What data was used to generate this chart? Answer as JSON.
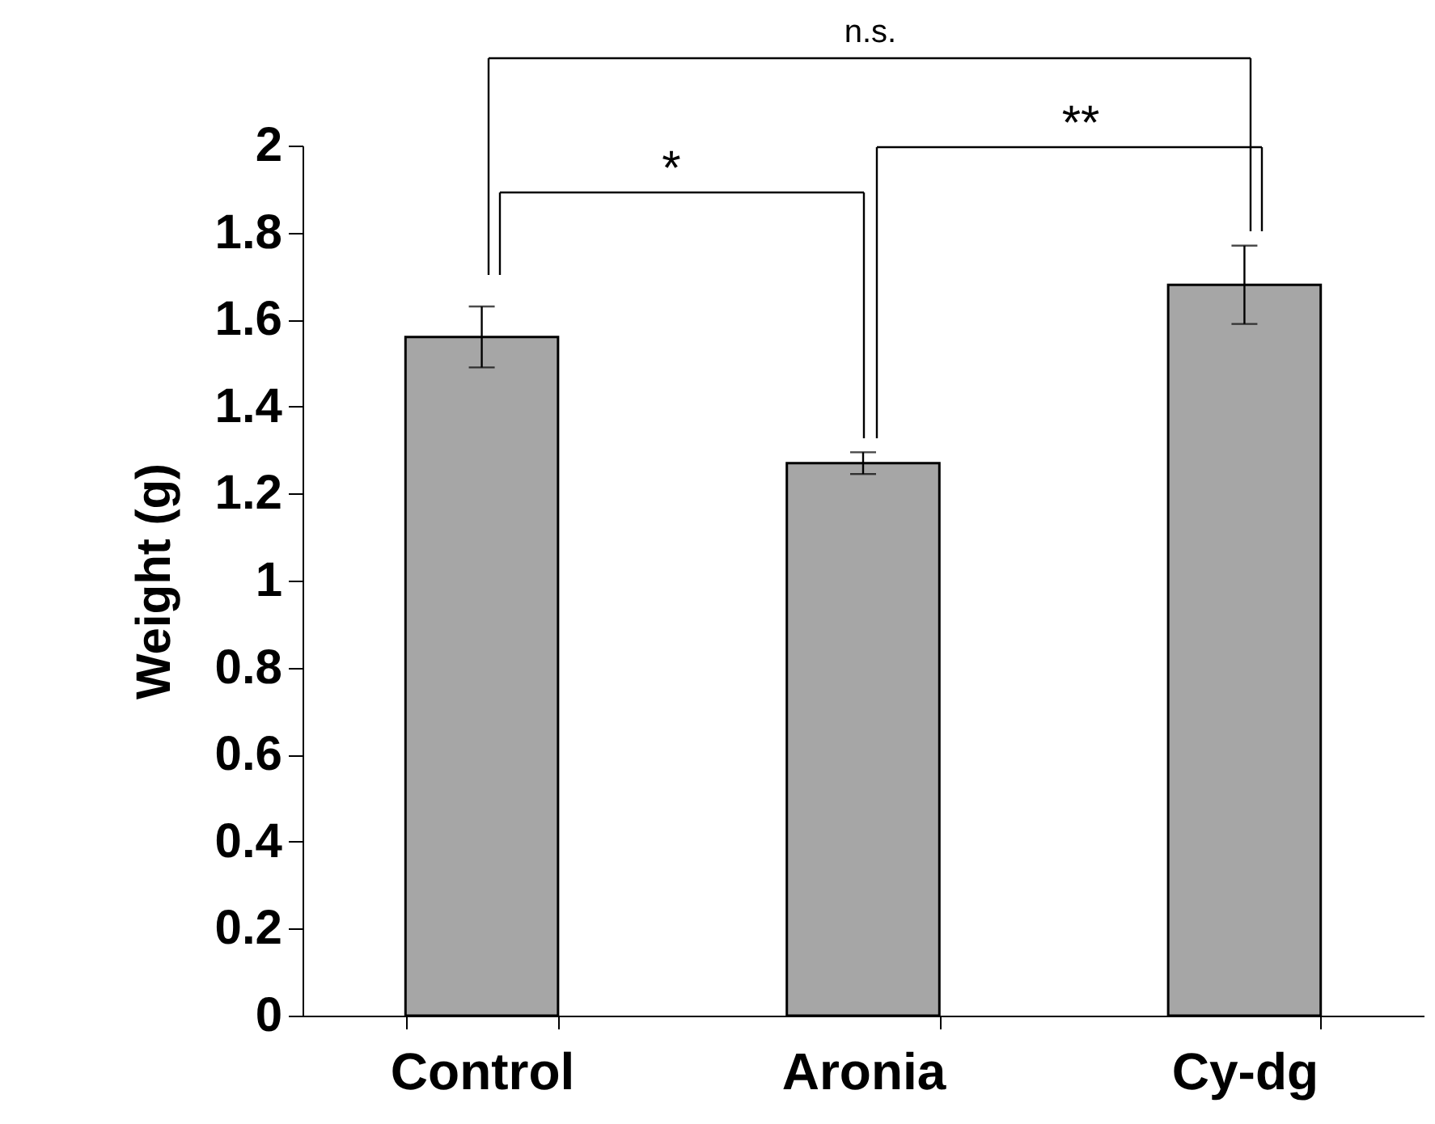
{
  "chart_data": {
    "type": "bar",
    "ylabel": "Weight (g)",
    "categories": [
      "Control",
      "Aronia",
      "Cy-dg"
    ],
    "values": [
      1.56,
      1.27,
      1.68
    ],
    "color": "#a6a6a6",
    "errors": [
      0.07,
      0.025,
      0.09
    ],
    "ylim": [
      0,
      2
    ],
    "yticks": [
      0,
      0.2,
      0.4,
      0.6,
      0.8,
      1,
      1.2,
      1.4,
      1.6,
      1.8,
      2
    ],
    "grid": false,
    "annotations": [
      "n.s.",
      "*",
      "**"
    ]
  }
}
